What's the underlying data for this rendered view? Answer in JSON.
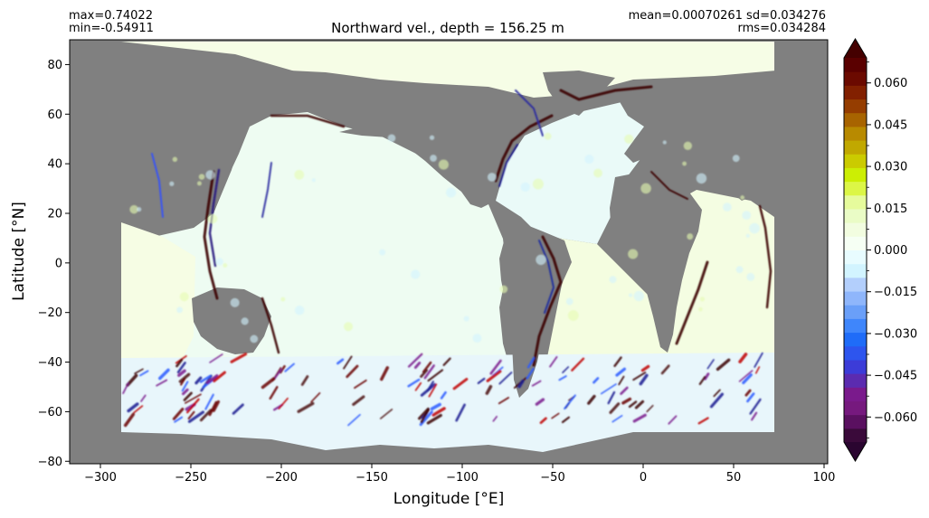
{
  "stats": {
    "max": "max=0.74022",
    "min": "min=-0.54911",
    "mean_sd": "mean=0.00070261 sd=0.034276",
    "rms": "rms=0.034284"
  },
  "chart_data": {
    "type": "heatmap",
    "title": "Northward vel., depth = 156.25 m",
    "xlabel": "Longitude [°E]",
    "ylabel": "Latitude [°N]",
    "xlim": [
      -317,
      102
    ],
    "ylim": [
      -81,
      90
    ],
    "x_ticks": [
      -300,
      -250,
      -200,
      -150,
      -100,
      -50,
      0,
      50,
      100
    ],
    "y_ticks": [
      -80,
      -60,
      -40,
      -20,
      0,
      20,
      40,
      60,
      80
    ],
    "land_color": "#808080",
    "colorbar": {
      "range": [
        -0.069,
        0.069
      ],
      "extend": "both",
      "tick_values": [
        -0.06,
        -0.045,
        -0.03,
        -0.015,
        0.0,
        0.015,
        0.03,
        0.045,
        0.06
      ],
      "tick_labels": [
        "−0.060",
        "−0.045",
        "−0.030",
        "−0.015",
        "0.000",
        "0.015",
        "0.030",
        "0.045",
        "0.060"
      ],
      "colors": [
        "#3a0a3a",
        "#5a1060",
        "#76197e",
        "#7a1a8c",
        "#5b2bb0",
        "#3c3cd8",
        "#2d55ee",
        "#1f6cf8",
        "#3f86fb",
        "#6a9ff8",
        "#8fb6fb",
        "#b3cffc",
        "#d2f4ff",
        "#e8fcff",
        "#f6fff4",
        "#f2fde0",
        "#eafcc6",
        "#e6fb9c",
        "#dcf646",
        "#ccee04",
        "#cbcb00",
        "#c1a800",
        "#b88a00",
        "#a86400",
        "#953d00",
        "#822000",
        "#6b0a00",
        "#5a0000"
      ],
      "min_color": "#2a0530",
      "max_color": "#450000"
    }
  }
}
